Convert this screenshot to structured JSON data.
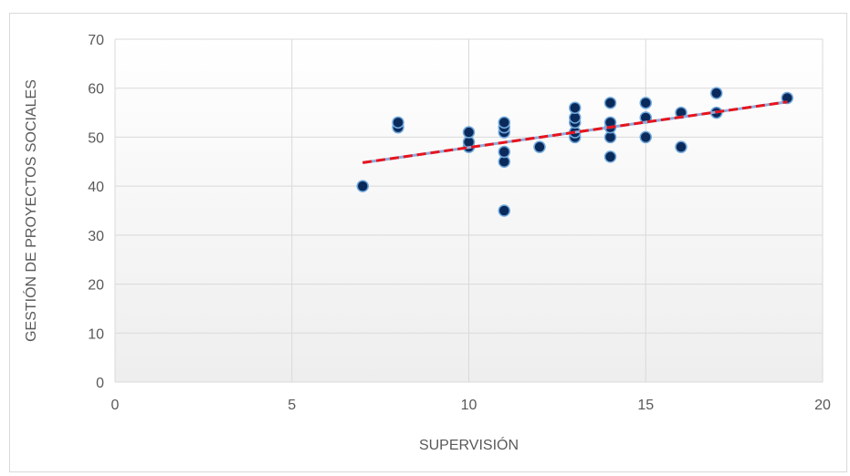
{
  "chart_data": {
    "type": "scatter",
    "title": "",
    "xlabel": "SUPERVISIÓN",
    "ylabel": "GESTIÓN DE PROYECTOS SOCIALES",
    "xlim": [
      0,
      20
    ],
    "ylim": [
      0,
      70
    ],
    "x_ticks": [
      0,
      5,
      10,
      15,
      20
    ],
    "y_ticks": [
      0,
      10,
      20,
      30,
      40,
      50,
      60,
      70
    ],
    "grid": true,
    "legend": "none",
    "series": [
      {
        "points": [
          [
            7,
            40
          ],
          [
            8,
            52
          ],
          [
            8,
            53
          ],
          [
            10,
            48
          ],
          [
            10,
            49
          ],
          [
            10,
            51
          ],
          [
            11,
            35
          ],
          [
            11,
            45
          ],
          [
            11,
            47
          ],
          [
            11,
            51
          ],
          [
            11,
            52
          ],
          [
            11,
            53
          ],
          [
            12,
            48
          ],
          [
            13,
            50
          ],
          [
            13,
            51
          ],
          [
            13,
            53
          ],
          [
            13,
            54
          ],
          [
            13,
            56
          ],
          [
            14,
            46
          ],
          [
            14,
            50
          ],
          [
            14,
            52
          ],
          [
            14,
            53
          ],
          [
            14,
            57
          ],
          [
            15,
            50
          ],
          [
            15,
            54
          ],
          [
            15,
            57
          ],
          [
            16,
            48
          ],
          [
            16,
            55
          ],
          [
            17,
            55
          ],
          [
            17,
            59
          ],
          [
            19,
            58
          ]
        ],
        "marker_color": "#0b2a5c",
        "marker_edge_color": "#6fa8dc"
      }
    ],
    "trendline": {
      "type": "linear",
      "x_range": [
        7,
        19
      ],
      "y_start": 44.8,
      "y_end": 57.2,
      "color": "#e8141d",
      "underline_color": "#8faadc",
      "style": "dashed"
    },
    "colors": {
      "grid": "#d9d9d9",
      "plot_gradient_top": "#ffffff",
      "plot_gradient_bottom": "#eeeeee",
      "tick_text": "#595959"
    }
  }
}
